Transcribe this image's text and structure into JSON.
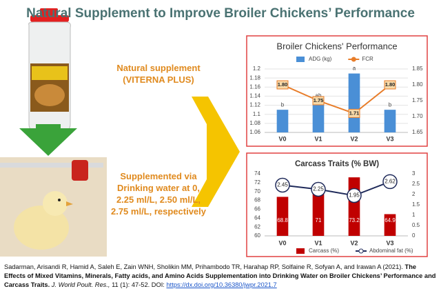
{
  "title": "Natural Supplement to Improve Broiler Chickens’ Performance",
  "supplement_text": "Natural supplement (VITERNA PLUS)",
  "method_text": "Supplemented via Drinking water at 0, 2.25 ml/L, 2.50 ml/L, 2.75 ml/L, respectively",
  "citation": {
    "authors": "Sadarman, Arisandi R, Hamid A, Saleh E, Zain WNH, Sholikin MM, Prihambodo TR, Harahap RP, Solfaine R, Sofyan A, and Irawan A (2021).",
    "paper_title": "The Effects of Mixed Vitamins, Minerals, Fatty acids, and Amino Acids Supplementation into Drinking Water on Broiler Chickens’ Performance and Carcass Traits.",
    "journal": "J. World Poult. Res.,",
    "details": "11 (1): 47-52. DOI:",
    "doi": "https://dx.doi.org/10.36380/jwpr.2021.7"
  },
  "chart_data": [
    {
      "type": "combo",
      "title": "Broiler Chickens' Performance",
      "categories": [
        "V0",
        "V1",
        "V2",
        "V3"
      ],
      "series": [
        {
          "name": "ADG (kg)",
          "color": "#4a8fd6",
          "values": [
            1.11,
            1.13,
            1.19,
            1.11
          ]
        },
        {
          "name": "FCR",
          "color": "#e87d2a",
          "values": [
            1.8,
            1.75,
            1.71,
            1.8
          ],
          "value_labels": [
            "1.80",
            "1.75",
            "1.71",
            "1.80"
          ],
          "axis": "y2",
          "marker": "box"
        }
      ],
      "annotations": [
        "b",
        "ab",
        "a",
        "b"
      ],
      "ylim": [
        1.06,
        1.2
      ],
      "yticks": [
        1.06,
        1.08,
        1.1,
        1.12,
        1.14,
        1.16,
        1.18,
        1.2
      ],
      "y2lim": [
        1.65,
        1.85
      ],
      "y2ticks": [
        1.65,
        {
          "value": 1.7,
          "label": "1.70"
        },
        1.75,
        {
          "value": 1.8,
          "label": "1.80"
        },
        1.85
      ],
      "grid": true,
      "legend": "top"
    },
    {
      "type": "combo",
      "title": "Carcass Traits (% BW)",
      "categories": [
        "V0",
        "V1",
        "V2",
        "V3"
      ],
      "series": [
        {
          "name": "Carcass (%)",
          "color": "#c00000",
          "values": [
            68.8,
            71,
            73.2,
            64.9
          ],
          "bar_labels": true
        },
        {
          "name": "Abdominal fat (%)",
          "color": "#1f2a5a",
          "values": [
            2.45,
            2.25,
            1.95,
            2.62
          ],
          "axis": "y2",
          "marker": "circle"
        }
      ],
      "ylim": [
        60,
        74
      ],
      "yticks": [
        60,
        62,
        64,
        66,
        68,
        70,
        72,
        74
      ],
      "y2lim": [
        0,
        3
      ],
      "y2ticks": [
        0,
        0.5,
        1,
        1.5,
        2,
        2.5,
        3
      ],
      "grid": false,
      "legend": "bottom"
    }
  ]
}
